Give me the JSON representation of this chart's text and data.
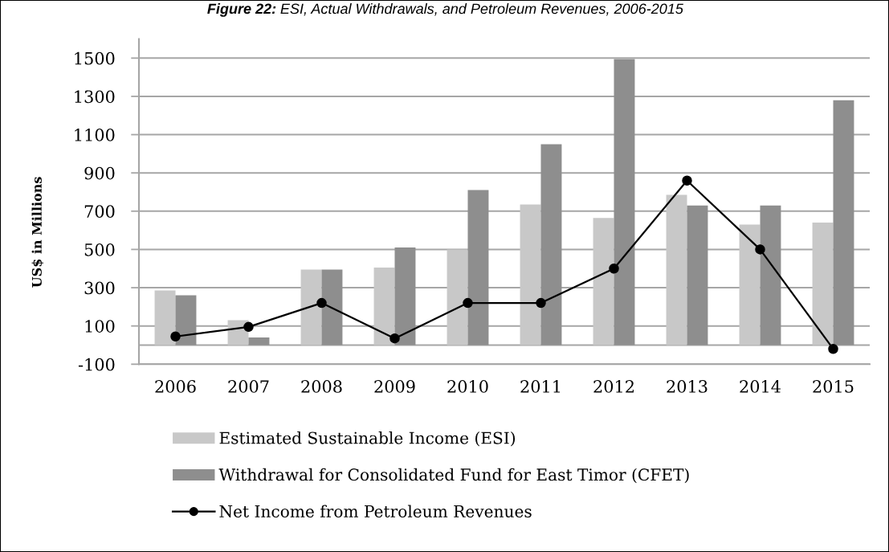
{
  "chart_data": {
    "type": "bar",
    "title": "Figure 22: ESI, Actual Withdrawals, and Petroleum Revenues, 2006-2015",
    "ylabel": "US$ in Millions",
    "categories": [
      "2006",
      "2007",
      "2008",
      "2009",
      "2010",
      "2011",
      "2012",
      "2013",
      "2014",
      "2015"
    ],
    "series": [
      {
        "name": "Estimated Sustainable Income (ESI)",
        "color": "#c8c8c8",
        "values": [
          285,
          130,
          395,
          405,
          500,
          735,
          665,
          785,
          630,
          640
        ]
      },
      {
        "name": "Withdrawal for Consolidated Fund for East Timor (CFET)",
        "color": "#8e8e8e",
        "values": [
          260,
          40,
          395,
          510,
          810,
          1050,
          1495,
          730,
          730,
          1280
        ]
      },
      {
        "name": "Net Income from Petroleum Revenues",
        "type": "line",
        "color": "#000000",
        "values": [
          45,
          95,
          220,
          35,
          220,
          220,
          400,
          860,
          500,
          -20
        ]
      }
    ],
    "marker": "circle",
    "line_style": "solid",
    "ylim": [
      -100,
      1600
    ],
    "yticks": [
      -100,
      100,
      300,
      500,
      700,
      900,
      1100,
      1300,
      1500
    ],
    "grid": "y",
    "legend": "bottom",
    "ref_lines": [
      {
        "axis": "y",
        "value": 0,
        "color": "#a6a6a6"
      }
    ]
  }
}
